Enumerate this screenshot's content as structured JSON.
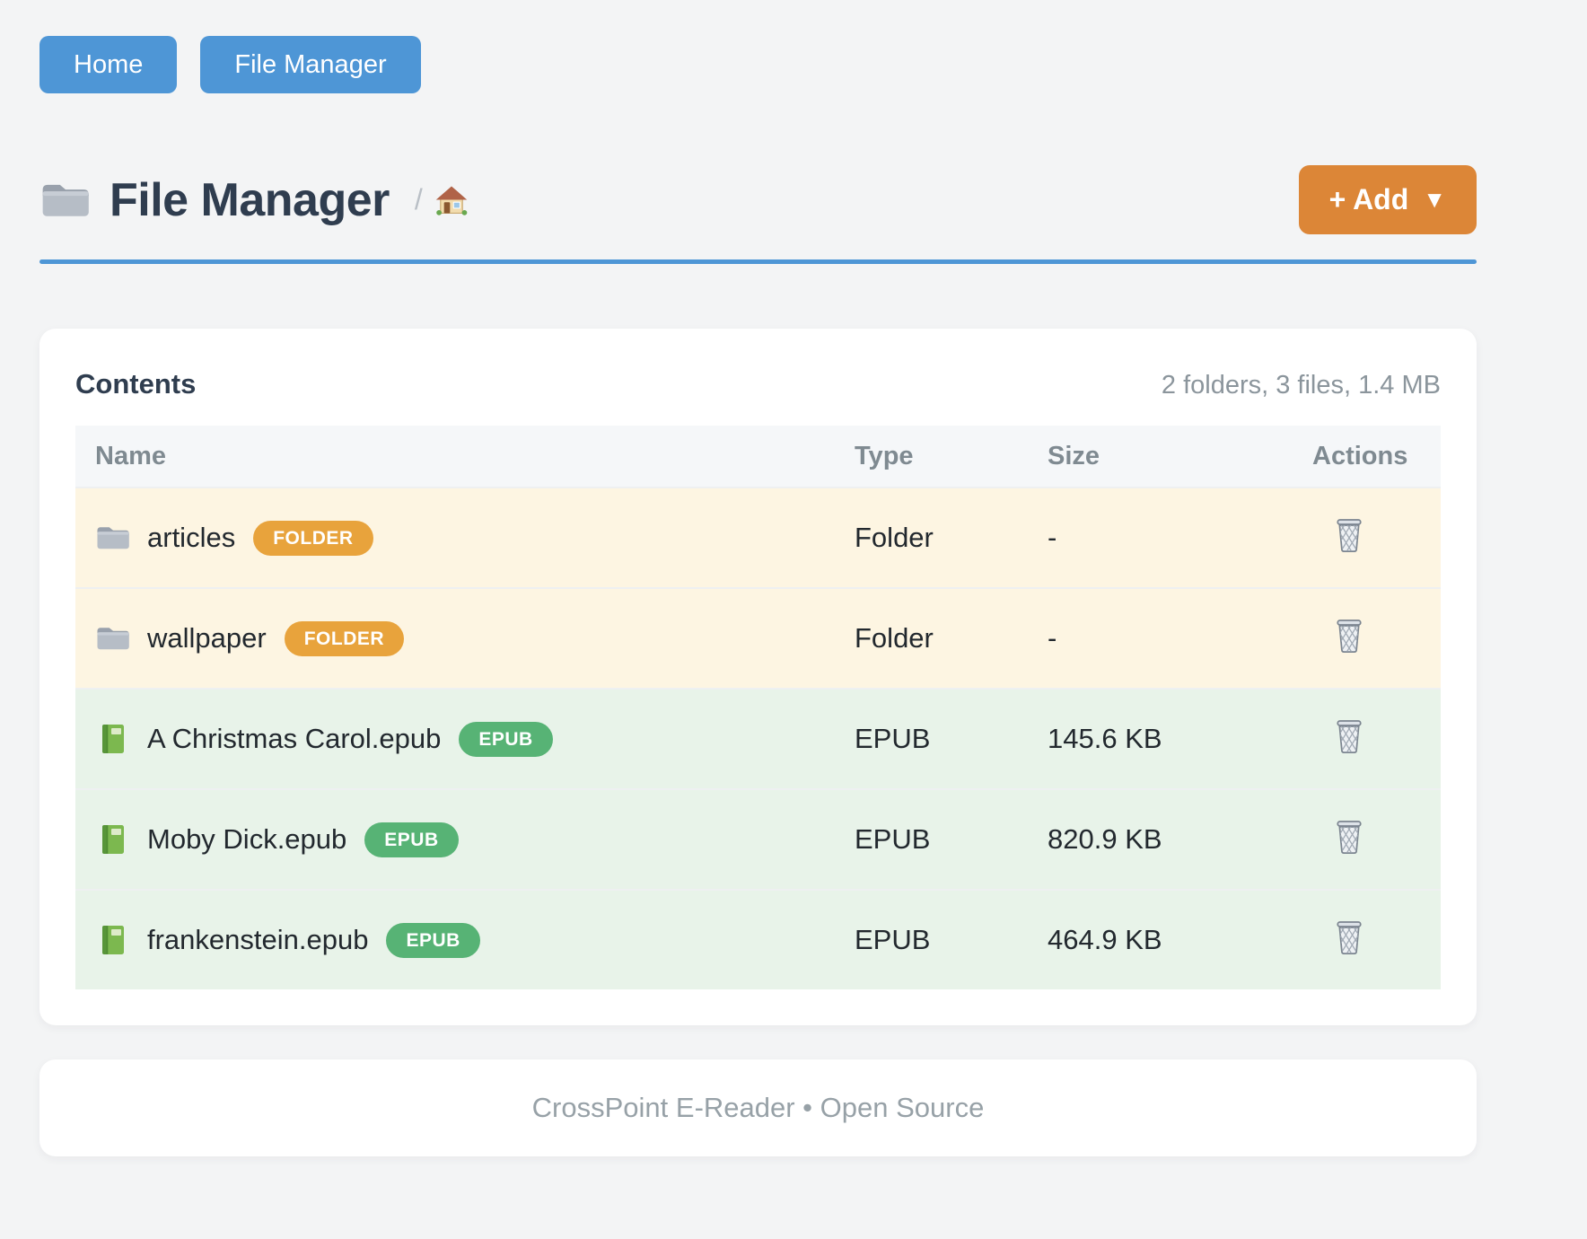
{
  "nav": {
    "items": [
      {
        "label": "Home"
      },
      {
        "label": "File Manager"
      }
    ]
  },
  "header": {
    "icon": "folder-icon",
    "title": "File Manager",
    "breadcrumb_separator": "/",
    "home_icon": "home-icon",
    "add_button": {
      "label": "+ Add",
      "caret": "▼"
    }
  },
  "contents": {
    "title": "Contents",
    "summary": "2 folders, 3 files, 1.4 MB",
    "columns": [
      "Name",
      "Type",
      "Size",
      "Actions"
    ],
    "rows": [
      {
        "icon": "folder-icon",
        "name": "articles",
        "badge": "FOLDER",
        "row_kind": "folder",
        "type": "Folder",
        "size": "-",
        "action_icon": "trash-icon"
      },
      {
        "icon": "folder-icon",
        "name": "wallpaper",
        "badge": "FOLDER",
        "row_kind": "folder",
        "type": "Folder",
        "size": "-",
        "action_icon": "trash-icon"
      },
      {
        "icon": "book-icon",
        "name": "A Christmas Carol.epub",
        "badge": "EPUB",
        "row_kind": "file",
        "type": "EPUB",
        "size": "145.6 KB",
        "action_icon": "trash-icon"
      },
      {
        "icon": "book-icon",
        "name": "Moby Dick.epub",
        "badge": "EPUB",
        "row_kind": "file",
        "type": "EPUB",
        "size": "820.9 KB",
        "action_icon": "trash-icon"
      },
      {
        "icon": "book-icon",
        "name": "frankenstein.epub",
        "badge": "EPUB",
        "row_kind": "file",
        "type": "EPUB",
        "size": "464.9 KB",
        "action_icon": "trash-icon"
      }
    ]
  },
  "footer": {
    "text": "CrossPoint E-Reader • Open Source"
  },
  "colors": {
    "page_bg": "#f3f4f5",
    "accent_blue": "#4e96d6",
    "accent_orange": "#dc8637",
    "badge_orange": "#e8a33c",
    "badge_green": "#57b375",
    "row_folder_bg": "#fdf5e2",
    "row_file_bg": "#e8f3e9",
    "title_color": "#2f3d4f"
  }
}
